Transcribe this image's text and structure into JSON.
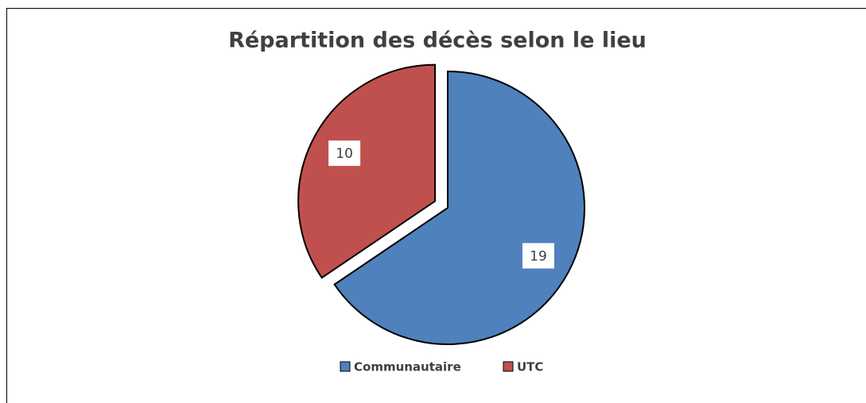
{
  "chart_data": {
    "type": "pie",
    "title": "Répartition des décès selon le lieu",
    "categories": [
      "Communautaire",
      "UTC"
    ],
    "values": [
      19,
      10
    ],
    "colors": [
      "#4f81bd",
      "#c0504d"
    ],
    "exploded": [
      false,
      true
    ],
    "legend": "bottom"
  }
}
